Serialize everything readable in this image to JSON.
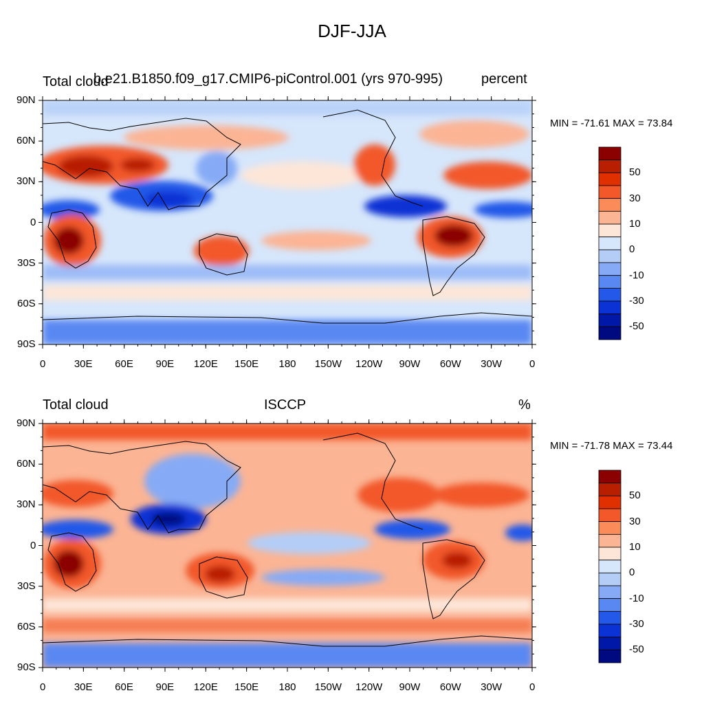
{
  "figure": {
    "title": "DJF-JJA"
  },
  "panels": [
    {
      "left_title": "Total cloud",
      "center_title": "b.e21.B1850.f09_g17.CMIP6-piControl.001 (yrs 970-995)",
      "right_title": "percent",
      "stats": "MIN = -71.61 MAX =  73.84"
    },
    {
      "left_title": "Total cloud",
      "center_title": "ISCCP",
      "right_title": "%",
      "stats": "MIN = -71.78 MAX =  73.44"
    }
  ],
  "chart_data": {
    "type": "heatmap",
    "projection": "cylindrical equidistant, centered on 180",
    "x_ticks": [
      "0",
      "30E",
      "60E",
      "90E",
      "120E",
      "150E",
      "180",
      "150W",
      "120W",
      "90W",
      "60W",
      "30W",
      "0"
    ],
    "y_ticks": [
      "90N",
      "60N",
      "30N",
      "0",
      "30S",
      "60S",
      "90S"
    ],
    "xlim": [
      0,
      360
    ],
    "ylim": [
      -90,
      90
    ],
    "colorbar": {
      "labels": [
        "50",
        "30",
        "10",
        "0",
        "-10",
        "-30",
        "-50"
      ],
      "colors": [
        "#8b0000",
        "#b81e00",
        "#e03000",
        "#f2582a",
        "#fb8c5a",
        "#fbb494",
        "#fde6d8",
        "#d6e6fb",
        "#b4cdf7",
        "#86aaf5",
        "#5a88f2",
        "#2458e8",
        "#0a32d4",
        "#0018a8",
        "#000a80"
      ]
    },
    "colors": {
      "strong_positive": "#8b0000",
      "positive": "#f2582a",
      "weak_positive": "#fbb494",
      "near_zero": "#fde6d8",
      "weak_negative": "#b4cdf7",
      "negative": "#2458e8",
      "strong_negative": "#000a80"
    }
  }
}
